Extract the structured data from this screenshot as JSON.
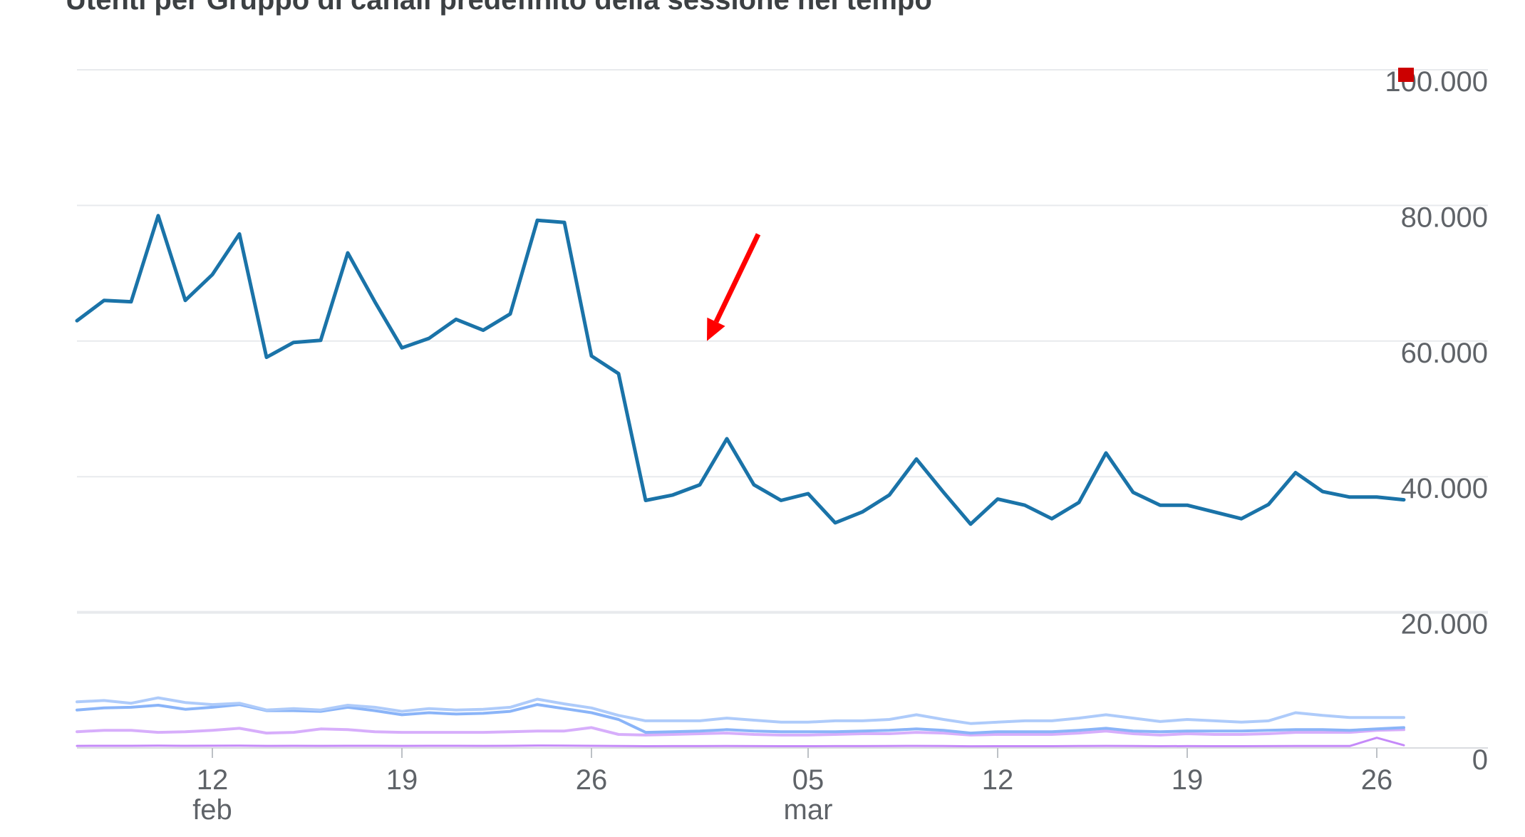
{
  "chart_data": {
    "type": "line",
    "title": "Utenti per Gruppo di canali predefinito della sessione nel tempo",
    "xlabel": "",
    "ylabel": "",
    "x_start": "2024-02-07",
    "x_end": "2024-03-30",
    "ylim": [
      0,
      100000
    ],
    "y_ticks": [
      {
        "value": 100000,
        "label": "100.000"
      },
      {
        "value": 80000,
        "label": "80.000"
      },
      {
        "value": 60000,
        "label": "60.000"
      },
      {
        "value": 40000,
        "label": "40.000"
      },
      {
        "value": 20000,
        "label": "20.000"
      },
      {
        "value": 0,
        "label": "0"
      }
    ],
    "x_ticks": [
      {
        "date": "2024-02-12",
        "day": "12",
        "month": "feb"
      },
      {
        "date": "2024-02-19",
        "day": "19",
        "month": ""
      },
      {
        "date": "2024-02-26",
        "day": "26",
        "month": ""
      },
      {
        "date": "2024-03-05",
        "day": "05",
        "month": "mar"
      },
      {
        "date": "2024-03-12",
        "day": "12",
        "month": ""
      },
      {
        "date": "2024-03-19",
        "day": "19",
        "month": ""
      },
      {
        "date": "2024-03-26",
        "day": "26",
        "month": ""
      }
    ],
    "grid": true,
    "series": [
      {
        "color": "#1a73a8",
        "width": 5,
        "values": [
          63000,
          66000,
          65800,
          78500,
          66000,
          69800,
          75800,
          57600,
          59800,
          60100,
          73000,
          65800,
          59000,
          60400,
          63200,
          61600,
          64000,
          77800,
          77500,
          57800,
          55200,
          36500,
          37300,
          38800,
          45600,
          38800,
          36500,
          37500,
          33200,
          34800,
          37300,
          42600,
          37700,
          33000,
          36700,
          35800,
          33800,
          36200,
          43500,
          37700,
          35800,
          35800,
          34800,
          33800,
          35900,
          40600,
          37800,
          37000,
          37000,
          36600
        ]
      },
      {
        "color": "#aecbfa",
        "width": 4,
        "values": [
          6800,
          7000,
          6600,
          7400,
          6700,
          6400,
          6600,
          5600,
          5800,
          5600,
          6300,
          6000,
          5400,
          5800,
          5600,
          5700,
          6000,
          7200,
          6500,
          5900,
          4800,
          4000,
          4000,
          4000,
          4400,
          4100,
          3800,
          3800,
          4000,
          4000,
          4200,
          4900,
          4200,
          3600,
          3800,
          4000,
          4000,
          4400,
          4900,
          4400,
          3900,
          4200,
          4000,
          3800,
          4000,
          5200,
          4800,
          4500,
          4500,
          4500
        ]
      },
      {
        "color": "#8ab4f8",
        "width": 4,
        "values": [
          5600,
          5900,
          6000,
          6300,
          5700,
          6000,
          6400,
          5500,
          5500,
          5400,
          6000,
          5500,
          4900,
          5200,
          5000,
          5100,
          5400,
          6400,
          5800,
          5200,
          4200,
          2300,
          2400,
          2500,
          2700,
          2500,
          2400,
          2400,
          2400,
          2500,
          2600,
          2800,
          2600,
          2200,
          2400,
          2400,
          2400,
          2600,
          2900,
          2500,
          2400,
          2500,
          2500,
          2500,
          2600,
          2700,
          2700,
          2600,
          2800,
          3000
        ]
      },
      {
        "color": "#d7aefb",
        "width": 4,
        "values": [
          2400,
          2600,
          2600,
          2300,
          2400,
          2600,
          2900,
          2200,
          2300,
          2800,
          2700,
          2400,
          2300,
          2300,
          2300,
          2300,
          2400,
          2500,
          2500,
          3000,
          2000,
          1900,
          2000,
          2100,
          2200,
          2000,
          1900,
          1900,
          2000,
          2100,
          2100,
          2300,
          2200,
          1900,
          2000,
          2000,
          2000,
          2200,
          2500,
          2100,
          1900,
          2100,
          2000,
          2000,
          2100,
          2300,
          2300,
          2300,
          2600,
          2700
        ]
      },
      {
        "color": "#c58af9",
        "width": 3,
        "values": [
          300,
          320,
          320,
          340,
          320,
          330,
          350,
          300,
          310,
          300,
          320,
          320,
          300,
          310,
          310,
          300,
          320,
          360,
          340,
          320,
          280,
          260,
          270,
          270,
          280,
          270,
          260,
          260,
          270,
          270,
          280,
          300,
          280,
          250,
          260,
          260,
          260,
          280,
          300,
          280,
          260,
          270,
          260,
          260,
          270,
          290,
          280,
          280,
          1500,
          400
        ]
      }
    ],
    "annotations": [
      {
        "type": "arrow",
        "color": "#ff0000",
        "points_at_date": "2024-03-01",
        "points_at_value": 60000
      }
    ],
    "legend_marker_color": "#cc0000"
  }
}
